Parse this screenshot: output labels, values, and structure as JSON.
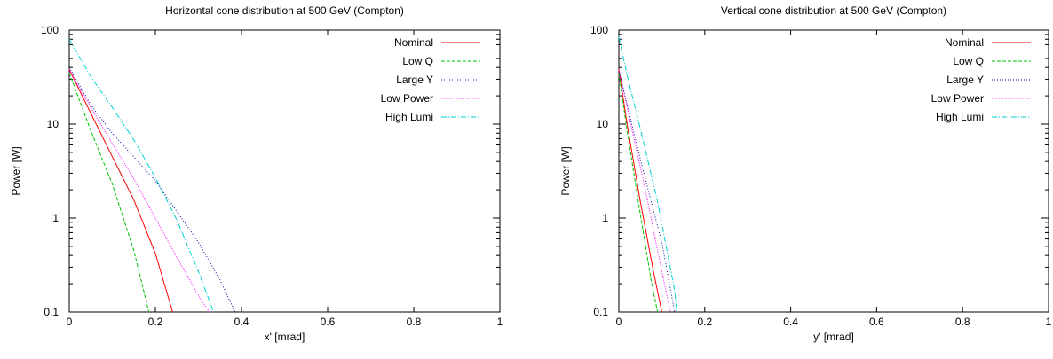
{
  "colors": {
    "Nominal": "#ff0000",
    "Low Q": "#00c000",
    "Large Y": "#0000a0",
    "Low Power": "#ff00ff",
    "High Lumi": "#00d0d0"
  },
  "dashes": {
    "Nominal": "",
    "Low Q": "4,2",
    "Large Y": "1,2",
    "Low Power": "1,1.5",
    "High Lumi": "6,2,1,2"
  },
  "chart_data": [
    {
      "type": "line",
      "title": "Horizontal cone distribution at 500 GeV (Compton)",
      "xlabel": "x' [mrad]",
      "ylabel": "Power [W]",
      "xlim": [
        0,
        1
      ],
      "ylim": [
        0.1,
        100
      ],
      "yscale": "log",
      "grid": false,
      "legend_position": "top-right",
      "xticks": [
        0,
        0.2,
        0.4,
        0.6,
        0.8,
        1
      ],
      "xtick_labels": [
        "0",
        "0.2",
        "0.4",
        "0.6",
        "0.8",
        "1"
      ],
      "yticks": [
        0.1,
        1,
        10,
        100
      ],
      "ytick_labels": [
        "0.1",
        "1",
        "10",
        "100"
      ],
      "series": [
        {
          "name": "Nominal",
          "x": [
            0,
            0.05,
            0.1,
            0.15,
            0.2,
            0.24
          ],
          "y": [
            38,
            13,
            4.5,
            1.55,
            0.42,
            0.1
          ]
        },
        {
          "name": "Low Q",
          "x": [
            0,
            0.05,
            0.1,
            0.15,
            0.185
          ],
          "y": [
            35,
            8.5,
            2.3,
            0.45,
            0.1
          ]
        },
        {
          "name": "Large Y",
          "x": [
            0,
            0.05,
            0.1,
            0.2,
            0.3,
            0.35,
            0.385
          ],
          "y": [
            40,
            16,
            8,
            2.5,
            0.55,
            0.22,
            0.1
          ]
        },
        {
          "name": "Low Power",
          "x": [
            0,
            0.05,
            0.1,
            0.15,
            0.2,
            0.25,
            0.3,
            0.325
          ],
          "y": [
            38,
            15,
            6.2,
            2.6,
            1.0,
            0.38,
            0.15,
            0.1
          ]
        },
        {
          "name": "High Lumi",
          "x": [
            0,
            0.05,
            0.1,
            0.15,
            0.2,
            0.25,
            0.3,
            0.335
          ],
          "y": [
            80,
            32,
            15,
            6.8,
            2.7,
            0.95,
            0.27,
            0.1
          ]
        }
      ]
    },
    {
      "type": "line",
      "title": "Vertical cone distribution at 500 GeV (Compton)",
      "xlabel": "y' [mrad]",
      "ylabel": "Power [W]",
      "xlim": [
        0,
        1
      ],
      "ylim": [
        0.1,
        100
      ],
      "yscale": "log",
      "grid": false,
      "legend_position": "top-right",
      "xticks": [
        0,
        0.2,
        0.4,
        0.6,
        0.8,
        1
      ],
      "xtick_labels": [
        "0",
        "0.2",
        "0.4",
        "0.6",
        "0.8",
        "1"
      ],
      "yticks": [
        0.1,
        1,
        10,
        100
      ],
      "ytick_labels": [
        "0.1",
        "1",
        "10",
        "100"
      ],
      "series": [
        {
          "name": "Nominal",
          "x": [
            0,
            0.02,
            0.05,
            0.08,
            0.1
          ],
          "y": [
            38,
            9.5,
            1.5,
            0.28,
            0.1
          ]
        },
        {
          "name": "Low Q",
          "x": [
            0,
            0.02,
            0.05,
            0.075,
            0.09
          ],
          "y": [
            35,
            8,
            1.1,
            0.22,
            0.1
          ]
        },
        {
          "name": "Large Y",
          "x": [
            0,
            0.03,
            0.06,
            0.1,
            0.13
          ],
          "y": [
            38,
            10,
            2.8,
            0.55,
            0.1
          ]
        },
        {
          "name": "Low Power",
          "x": [
            0,
            0.03,
            0.06,
            0.09,
            0.12
          ],
          "y": [
            38,
            9,
            2.2,
            0.45,
            0.1
          ]
        },
        {
          "name": "High Lumi",
          "x": [
            0,
            0.02,
            0.05,
            0.09,
            0.13,
            0.135
          ],
          "y": [
            85,
            32,
            9,
            1.5,
            0.17,
            0.1
          ]
        }
      ]
    }
  ]
}
